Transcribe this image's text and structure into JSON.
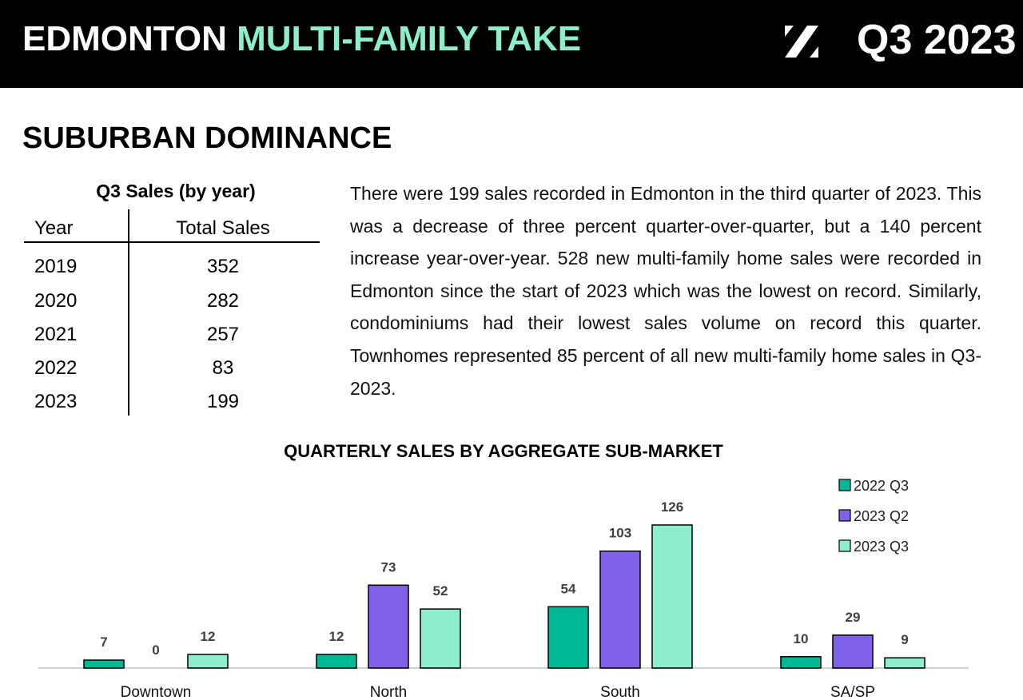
{
  "header": {
    "brand_white": "EDMONTON",
    "brand_green": "MULTI-FAMILY TAKE",
    "logo": "percent-slash-logo",
    "quarter": "Q3 2023",
    "colors": {
      "background": "#000000",
      "accent": "#8ceecc"
    }
  },
  "section_title": "SUBURBAN DOMINANCE",
  "sales_table": {
    "title": "Q3 Sales (by year)",
    "headers": [
      "Year",
      "Total Sales"
    ],
    "rows": [
      {
        "year": "2019",
        "total": "352"
      },
      {
        "year": "2020",
        "total": "282"
      },
      {
        "year": "2021",
        "total": "257"
      },
      {
        "year": "2022",
        "total": "83"
      },
      {
        "year": "2023",
        "total": "199"
      }
    ]
  },
  "paragraph": "There were 199 sales recorded in Edmonton in the third quarter of 2023. This was a decrease of three percent quarter-over-quarter, but a 140 percent increase year-over-year. 528 new multi-family home sales were recorded in Edmonton since the start of 2023 which was the lowest on record. Similarly, condominiums had their lowest sales volume on record this quarter. Townhomes represented 85 percent of all new multi-family home sales in Q3-2023.",
  "chart_data": {
    "type": "bar",
    "title": "QUARTERLY SALES BY AGGREGATE SUB-MARKET",
    "categories": [
      "Downtown",
      "North",
      "South",
      "SA/SP"
    ],
    "series": [
      {
        "name": "2022 Q3",
        "color": "#00b894",
        "values": [
          7,
          12,
          54,
          10
        ]
      },
      {
        "name": "2023 Q2",
        "color": "#8061ea",
        "values": [
          0,
          73,
          103,
          29
        ]
      },
      {
        "name": "2023 Q3",
        "color": "#8ceecc",
        "values": [
          12,
          52,
          126,
          9
        ]
      }
    ],
    "ylim": [
      0,
      126
    ],
    "grid": false,
    "data_labels": true,
    "legend": "top-right"
  }
}
